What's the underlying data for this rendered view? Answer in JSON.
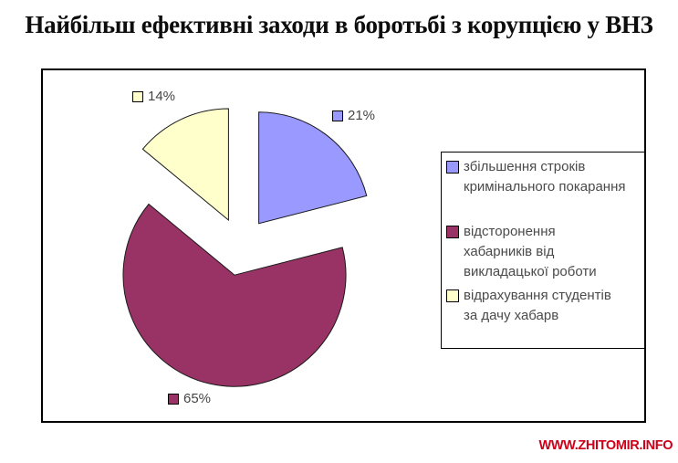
{
  "watermark": {
    "text": "WWW.ZHITOMIR.INFO",
    "color": "#CC0019"
  },
  "chart_data": {
    "type": "pie",
    "title": "Найбільш ефективні заходи в боротьбі з корупцією у ВНЗ",
    "exploded": true,
    "start_angle_deg": 0,
    "direction": "clockwise",
    "legend_position": "right",
    "slice_border_color": "#1a1a1a",
    "slices": [
      {
        "label": "збільшення строків кримінального покарання",
        "value": 21,
        "percent_label": "21%",
        "color": "#9999FF",
        "legend_lines": [
          "збільшення строків",
          "кримінального покарання"
        ]
      },
      {
        "label": "відсторонення хабарників від викладацької роботи",
        "value": 65,
        "percent_label": "65%",
        "color": "#993366",
        "legend_lines": [
          "відсторонення",
          "хабарників від",
          "викладацької роботи"
        ]
      },
      {
        "label": "відрахування студентів за дачу хабарв",
        "value": 14,
        "percent_label": "14%",
        "color": "#FFFFCC",
        "legend_lines": [
          "відрахування студентів",
          "за дачу хабарв"
        ]
      }
    ]
  }
}
